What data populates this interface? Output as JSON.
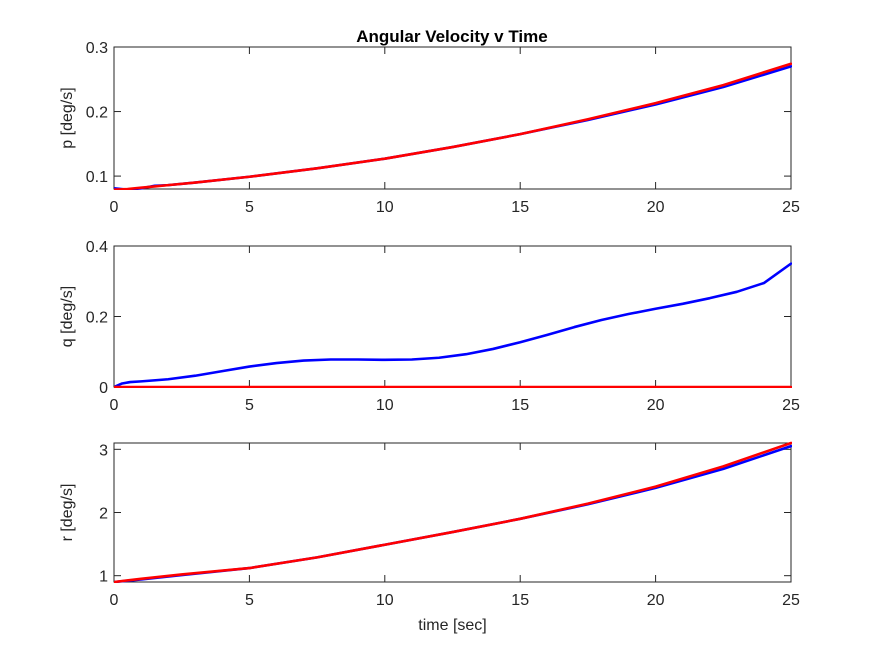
{
  "figure": {
    "title": "Angular Velocity v Time"
  },
  "colors": {
    "series_1": "#0000ff",
    "series_2": "#ff0000",
    "axes": "#262626"
  },
  "chart_data": [
    {
      "type": "line",
      "title": "Angular Velocity v Time",
      "xlabel": "",
      "ylabel": "p [deg/s]",
      "xlim": [
        0,
        25
      ],
      "ylim": [
        0.08,
        0.3
      ],
      "xticks": [
        0,
        5,
        10,
        15,
        20,
        25
      ],
      "yticks": [
        0.1,
        0.2,
        0.3
      ],
      "ytick_labels": [
        "0.1",
        "0.2",
        "0.3"
      ],
      "grid": false,
      "series": [
        {
          "color": "#0000ff",
          "x": [
            0,
            0.5,
            1,
            1.5,
            2,
            3,
            5,
            7.5,
            10,
            12.5,
            15,
            17.5,
            20,
            22.5,
            25
          ],
          "y": [
            0.081,
            0.079,
            0.081,
            0.085,
            0.086,
            0.09,
            0.099,
            0.112,
            0.127,
            0.145,
            0.165,
            0.187,
            0.211,
            0.238,
            0.27
          ]
        },
        {
          "color": "#ff0000",
          "x": [
            0,
            0.5,
            1,
            1.5,
            2,
            3,
            5,
            7.5,
            10,
            12.5,
            15,
            17.5,
            20,
            22.5,
            25
          ],
          "y": [
            0.079,
            0.08,
            0.082,
            0.084,
            0.086,
            0.09,
            0.099,
            0.112,
            0.127,
            0.145,
            0.165,
            0.188,
            0.213,
            0.241,
            0.274
          ]
        }
      ]
    },
    {
      "type": "line",
      "xlabel": "",
      "ylabel": "q [deg/s]",
      "xlim": [
        0,
        25
      ],
      "ylim": [
        0,
        0.4
      ],
      "xticks": [
        0,
        5,
        10,
        15,
        20,
        25
      ],
      "yticks": [
        0,
        0.2,
        0.4
      ],
      "ytick_labels": [
        "0",
        "0.2",
        "0.4"
      ],
      "grid": false,
      "series": [
        {
          "color": "#0000ff",
          "x": [
            0,
            0.3,
            0.6,
            1,
            2,
            3,
            4,
            5,
            6,
            7,
            8,
            9,
            10,
            11,
            12,
            13,
            14,
            15,
            16,
            17,
            18,
            19,
            20,
            21,
            22,
            23,
            24,
            25
          ],
          "y": [
            0.0,
            0.01,
            0.014,
            0.016,
            0.022,
            0.032,
            0.045,
            0.058,
            0.068,
            0.075,
            0.078,
            0.078,
            0.077,
            0.078,
            0.083,
            0.093,
            0.108,
            0.127,
            0.148,
            0.17,
            0.19,
            0.207,
            0.222,
            0.236,
            0.252,
            0.27,
            0.295,
            0.35
          ]
        },
        {
          "color": "#ff0000",
          "x": [
            0,
            25
          ],
          "y": [
            0,
            0
          ]
        }
      ]
    },
    {
      "type": "line",
      "xlabel": "time [sec]",
      "ylabel": "r [deg/s]",
      "xlim": [
        0,
        25
      ],
      "ylim": [
        0.9,
        3.1
      ],
      "xticks": [
        0,
        5,
        10,
        15,
        20,
        25
      ],
      "yticks": [
        1,
        2,
        3
      ],
      "ytick_labels": [
        "1",
        "2",
        "3"
      ],
      "grid": false,
      "series": [
        {
          "color": "#0000ff",
          "x": [
            0,
            1,
            2.5,
            5,
            7.5,
            10,
            12.5,
            15,
            17.5,
            20,
            22.5,
            25
          ],
          "y": [
            0.9,
            0.94,
            1.01,
            1.12,
            1.29,
            1.49,
            1.69,
            1.9,
            2.13,
            2.39,
            2.69,
            3.05
          ]
        },
        {
          "color": "#ff0000",
          "x": [
            0,
            1,
            2.5,
            5,
            7.5,
            10,
            12.5,
            15,
            17.5,
            20,
            22.5,
            25
          ],
          "y": [
            0.9,
            0.95,
            1.02,
            1.12,
            1.29,
            1.49,
            1.69,
            1.9,
            2.14,
            2.41,
            2.73,
            3.1
          ]
        }
      ]
    }
  ]
}
